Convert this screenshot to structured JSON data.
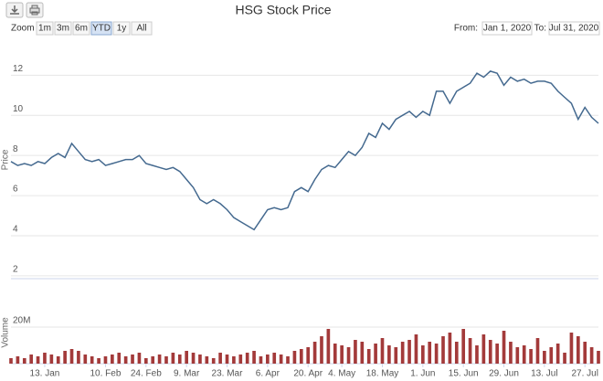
{
  "chart_data": {
    "type": "stock",
    "title": "HSG Stock Price",
    "x": [
      "2020-01-02",
      "2020-01-03",
      "2020-01-06",
      "2020-01-08",
      "2020-01-10",
      "2020-01-13",
      "2020-01-15",
      "2020-01-17",
      "2020-01-20",
      "2020-01-22",
      "2020-01-31",
      "2020-02-03",
      "2020-02-05",
      "2020-02-07",
      "2020-02-10",
      "2020-02-12",
      "2020-02-14",
      "2020-02-17",
      "2020-02-19",
      "2020-02-21",
      "2020-02-24",
      "2020-02-26",
      "2020-02-28",
      "2020-03-02",
      "2020-03-04",
      "2020-03-06",
      "2020-03-09",
      "2020-03-11",
      "2020-03-13",
      "2020-03-16",
      "2020-03-18",
      "2020-03-20",
      "2020-03-23",
      "2020-03-25",
      "2020-03-27",
      "2020-03-30",
      "2020-04-01",
      "2020-04-03",
      "2020-04-06",
      "2020-04-08",
      "2020-04-10",
      "2020-04-13",
      "2020-04-15",
      "2020-04-17",
      "2020-04-20",
      "2020-04-22",
      "2020-04-24",
      "2020-04-27",
      "2020-04-29",
      "2020-05-04",
      "2020-05-06",
      "2020-05-08",
      "2020-05-11",
      "2020-05-13",
      "2020-05-15",
      "2020-05-18",
      "2020-05-20",
      "2020-05-22",
      "2020-05-25",
      "2020-05-27",
      "2020-05-29",
      "2020-06-01",
      "2020-06-03",
      "2020-06-05",
      "2020-06-08",
      "2020-06-10",
      "2020-06-12",
      "2020-06-15",
      "2020-06-17",
      "2020-06-19",
      "2020-06-22",
      "2020-06-24",
      "2020-06-26",
      "2020-06-29",
      "2020-07-01",
      "2020-07-03",
      "2020-07-06",
      "2020-07-08",
      "2020-07-10",
      "2020-07-13",
      "2020-07-15",
      "2020-07-17",
      "2020-07-20",
      "2020-07-22",
      "2020-07-24",
      "2020-07-27",
      "2020-07-29",
      "2020-07-31"
    ],
    "xticks": [
      {
        "value": "2020-01-13",
        "label": "13. Jan"
      },
      {
        "value": "2020-02-10",
        "label": "10. Feb"
      },
      {
        "value": "2020-02-24",
        "label": "24. Feb"
      },
      {
        "value": "2020-03-09",
        "label": "9. Mar"
      },
      {
        "value": "2020-03-23",
        "label": "23. Mar"
      },
      {
        "value": "2020-04-06",
        "label": "6. Apr"
      },
      {
        "value": "2020-04-20",
        "label": "20. Apr"
      },
      {
        "value": "2020-05-04",
        "label": "4. May"
      },
      {
        "value": "2020-05-18",
        "label": "18. May"
      },
      {
        "value": "2020-06-01",
        "label": "1. Jun"
      },
      {
        "value": "2020-06-15",
        "label": "15. Jun"
      },
      {
        "value": "2020-06-29",
        "label": "29. Jun"
      },
      {
        "value": "2020-07-13",
        "label": "13. Jul"
      },
      {
        "value": "2020-07-27",
        "label": "27. Jul"
      }
    ],
    "grid": true,
    "panes": [
      {
        "type": "line",
        "ylabel": "Price",
        "color": "#44698f",
        "ylim": [
          1.86,
          13.7
        ],
        "yticks": [
          2,
          4,
          6,
          8,
          10,
          12
        ],
        "values": [
          7.7,
          7.5,
          7.6,
          7.5,
          7.7,
          7.6,
          7.9,
          8.1,
          7.9,
          8.6,
          8.2,
          7.8,
          7.7,
          7.8,
          7.5,
          7.6,
          7.7,
          7.8,
          7.8,
          8.0,
          7.6,
          7.5,
          7.4,
          7.3,
          7.4,
          7.2,
          6.8,
          6.4,
          5.8,
          5.6,
          5.8,
          5.6,
          5.3,
          4.9,
          4.7,
          4.5,
          4.3,
          4.8,
          5.3,
          5.4,
          5.3,
          5.4,
          6.2,
          6.4,
          6.2,
          6.8,
          7.3,
          7.5,
          7.4,
          7.8,
          8.2,
          8.0,
          8.4,
          9.1,
          8.9,
          9.6,
          9.3,
          9.8,
          10.0,
          10.2,
          9.9,
          10.2,
          10.0,
          11.2,
          11.2,
          10.6,
          11.2,
          11.4,
          11.6,
          12.1,
          11.9,
          12.2,
          12.1,
          11.5,
          11.9,
          11.7,
          11.8,
          11.6,
          11.7,
          11.7,
          11.6,
          11.2,
          10.9,
          10.6,
          9.8,
          10.4,
          9.9,
          9.6
        ]
      },
      {
        "type": "bar",
        "ylabel": "Volume",
        "color": "#a33a3a",
        "ylim": [
          0,
          34000000
        ],
        "yticks": [
          {
            "value": 20000000,
            "label": "20M"
          }
        ],
        "values": [
          3000000,
          4000000,
          3000000,
          5000000,
          4000000,
          6000000,
          5000000,
          4000000,
          7000000,
          8000000,
          7000000,
          5000000,
          4000000,
          3000000,
          4000000,
          5000000,
          6000000,
          4000000,
          5000000,
          6000000,
          3000000,
          4000000,
          5000000,
          4000000,
          6000000,
          5000000,
          7000000,
          6000000,
          5000000,
          4000000,
          3000000,
          6000000,
          5000000,
          4000000,
          5000000,
          6000000,
          7000000,
          4000000,
          5000000,
          6000000,
          5000000,
          4000000,
          7000000,
          8000000,
          9000000,
          12000000,
          15000000,
          19000000,
          11000000,
          10000000,
          9000000,
          13000000,
          12000000,
          8000000,
          11000000,
          14000000,
          10000000,
          9000000,
          12000000,
          13000000,
          16000000,
          10000000,
          12000000,
          11000000,
          15000000,
          17000000,
          12000000,
          19000000,
          14000000,
          10000000,
          16000000,
          13000000,
          11000000,
          18000000,
          12000000,
          9000000,
          10000000,
          8000000,
          14000000,
          7000000,
          9000000,
          11000000,
          6000000,
          17000000,
          15000000,
          12000000,
          9000000,
          7000000
        ]
      }
    ]
  },
  "controls": {
    "zoom_label": "Zoom",
    "buttons": [
      "1m",
      "3m",
      "6m",
      "YTD",
      "1y",
      "All"
    ],
    "selected": 3,
    "from_label": "From:",
    "from": "Jan 1, 2020",
    "to_label": "To:",
    "to": "Jul 31, 2020"
  }
}
